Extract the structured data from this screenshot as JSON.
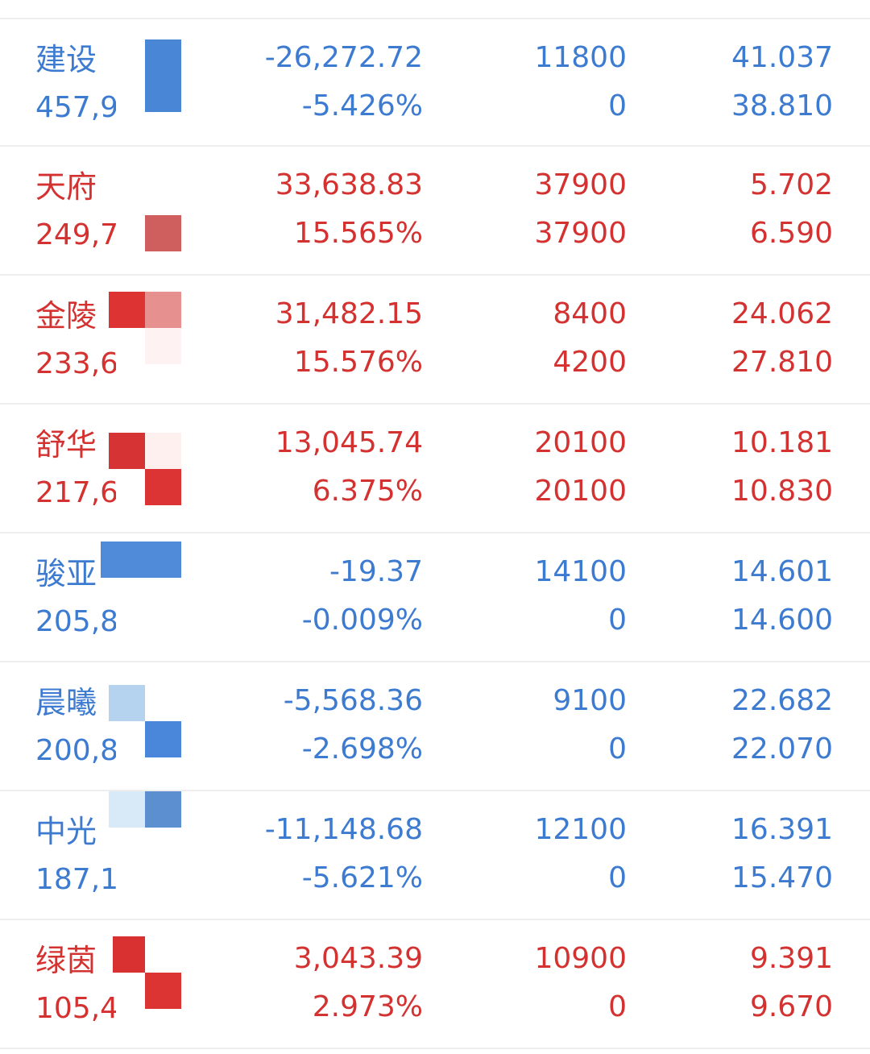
{
  "colors": {
    "up": "#d43131",
    "down": "#3d7bd1"
  },
  "rows": [
    {
      "name": "建设",
      "sub": "457,9",
      "dir": "down",
      "change": "-26,272.72",
      "change_pct": "-5.426%",
      "vol1": "11800",
      "vol2": "0",
      "p1": "41.037",
      "p2": "38.810"
    },
    {
      "name": "天府",
      "sub": "249,7",
      "dir": "up",
      "change": "33,638.83",
      "change_pct": "15.565%",
      "vol1": "37900",
      "vol2": "37900",
      "p1": "5.702",
      "p2": "6.590"
    },
    {
      "name": "金陵",
      "sub": "233,6",
      "dir": "up",
      "change": "31,482.15",
      "change_pct": "15.576%",
      "vol1": "8400",
      "vol2": "4200",
      "p1": "24.062",
      "p2": "27.810"
    },
    {
      "name": "舒华",
      "sub": "217,6",
      "dir": "up",
      "change": "13,045.74",
      "change_pct": "6.375%",
      "vol1": "20100",
      "vol2": "20100",
      "p1": "10.181",
      "p2": "10.830"
    },
    {
      "name": "骏亚",
      "sub": "205,8",
      "dir": "down",
      "change": "-19.37",
      "change_pct": "-0.009%",
      "vol1": "14100",
      "vol2": "0",
      "p1": "14.601",
      "p2": "14.600"
    },
    {
      "name": "晨曦",
      "sub": "200,8",
      "dir": "down",
      "change": "-5,568.36",
      "change_pct": "-2.698%",
      "vol1": "9100",
      "vol2": "0",
      "p1": "22.682",
      "p2": "22.070"
    },
    {
      "name": "中光",
      "sub": "187,1",
      "dir": "down",
      "change": "-11,148.68",
      "change_pct": "-5.621%",
      "vol1": "12100",
      "vol2": "0",
      "p1": "16.391",
      "p2": "15.470"
    },
    {
      "name": "绿茵",
      "sub": "105,4",
      "dir": "up",
      "change": "3,043.39",
      "change_pct": "2.973%",
      "vol1": "10900",
      "vol2": "0",
      "p1": "9.391",
      "p2": "9.670"
    }
  ]
}
